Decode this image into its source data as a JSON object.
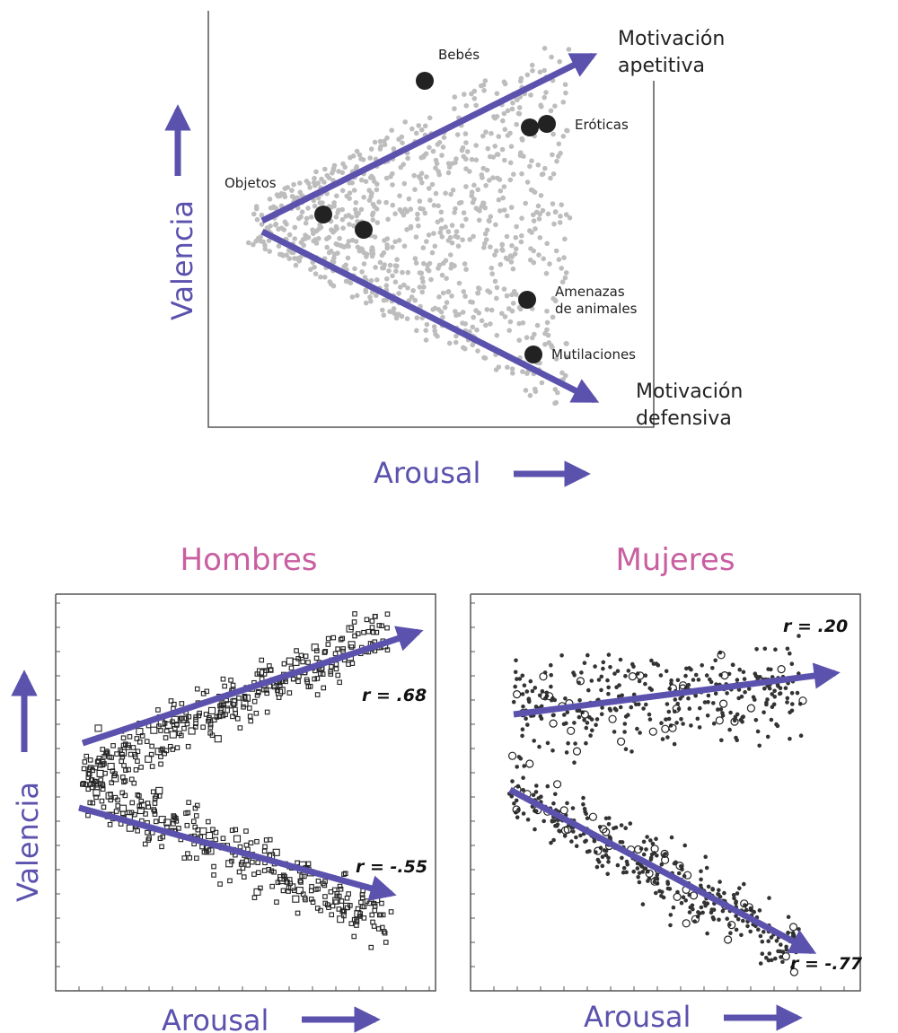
{
  "top_chart": {
    "ylabel": "Valencia",
    "xlabel": "Arousal",
    "arrow_up_label": "Motivación",
    "arrow_up_label2": "apetitiva",
    "arrow_down_label": "Motivación",
    "arrow_down_label2": "defensiva",
    "categories": [
      {
        "name": "Bebés"
      },
      {
        "name": "Eróticas"
      },
      {
        "name": "Objetos"
      },
      {
        "name": "Amenazas",
        "name2": "de animales"
      },
      {
        "name": "Mutilaciones"
      }
    ]
  },
  "bottom_left": {
    "title": "Hombres",
    "ylabel": "Valencia",
    "xlabel": "Arousal",
    "r_pos": "r = .68",
    "r_neg": "r = -.55"
  },
  "bottom_right": {
    "title": "Mujeres",
    "xlabel": "Arousal",
    "r_pos": "r = .20",
    "r_neg": "r = -.77"
  },
  "colors": {
    "arrow": "#5b52ad",
    "title_pink": "#c85fa0",
    "gray_dot": "#bdbdbd",
    "dark_dot": "#222222"
  },
  "chart_data": [
    {
      "type": "scatter",
      "title": "",
      "xlabel": "Arousal",
      "ylabel": "Valencia",
      "grid": false,
      "highlighted_points": [
        "Bebés",
        "Eróticas",
        "Objetos",
        "Amenazas de animales",
        "Mutilaciones"
      ],
      "trend_lines": [
        "Motivación apetitiva",
        "Motivación defensiva"
      ]
    },
    {
      "type": "scatter",
      "title": "Hombres",
      "xlabel": "Arousal",
      "ylabel": "Valencia",
      "series": [
        {
          "name": "r = .68",
          "r": 0.68
        },
        {
          "name": "r = -.55",
          "r": -0.55
        }
      ]
    },
    {
      "type": "scatter",
      "title": "Mujeres",
      "xlabel": "Arousal",
      "ylabel": "",
      "series": [
        {
          "name": "r = .20",
          "r": 0.2
        },
        {
          "name": "r = -.77",
          "r": -0.77
        }
      ]
    }
  ]
}
